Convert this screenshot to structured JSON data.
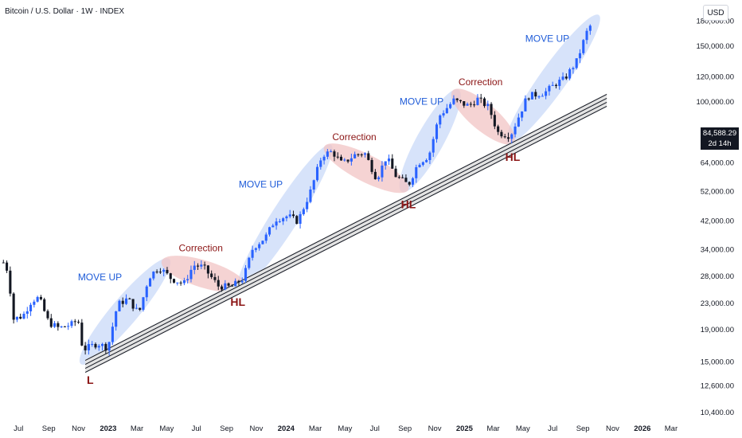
{
  "header": {
    "title": "Bitcoin / U.S. Dollar · 1W · INDEX"
  },
  "price_scale": {
    "currency": "USD"
  },
  "last_price": {
    "value": "84,588.29",
    "countdown": "2d 14h"
  },
  "colors": {
    "up": "#2962ff",
    "down": "#131722",
    "move_up_band": "#c9daf8",
    "correction_band": "#f2c4c4",
    "trendline": "#131722",
    "move_up_text": "#1e5bd8",
    "correction_text": "#8b1414"
  },
  "chart_data": {
    "type": "candlestick",
    "symbol": "Bitcoin / U.S. Dollar",
    "interval": "1W",
    "y_scale": "log",
    "y_ticks": [
      180000,
      150000,
      120000,
      100000,
      84000,
      64000,
      52000,
      42000,
      34000,
      28000,
      23000,
      19000,
      15000,
      12600,
      10400
    ],
    "y_tick_labels": [
      "180,000.00",
      "150,000.00",
      "120,000.00",
      "100,000.00",
      "",
      "64,000.00",
      "52,000.00",
      "42,000.00",
      "34,000.00",
      "28,000.00",
      "23,000.00",
      "19,000.00",
      "15,000.00",
      "12,600.00",
      "10,400.00"
    ],
    "x_ticks": [
      {
        "label": "Jul",
        "date": "2022-07",
        "year": false
      },
      {
        "label": "Sep",
        "date": "2022-09",
        "year": false
      },
      {
        "label": "Nov",
        "date": "2022-11",
        "year": false
      },
      {
        "label": "2023",
        "date": "2023-01",
        "year": true
      },
      {
        "label": "Mar",
        "date": "2023-03",
        "year": false
      },
      {
        "label": "May",
        "date": "2023-05",
        "year": false
      },
      {
        "label": "Jul",
        "date": "2023-07",
        "year": false
      },
      {
        "label": "Sep",
        "date": "2023-09",
        "year": false
      },
      {
        "label": "Nov",
        "date": "2023-11",
        "year": false
      },
      {
        "label": "2024",
        "date": "2024-01",
        "year": true
      },
      {
        "label": "Mar",
        "date": "2024-03",
        "year": false
      },
      {
        "label": "May",
        "date": "2024-05",
        "year": false
      },
      {
        "label": "Jul",
        "date": "2024-07",
        "year": false
      },
      {
        "label": "Sep",
        "date": "2024-09",
        "year": false
      },
      {
        "label": "Nov",
        "date": "2024-11",
        "year": false
      },
      {
        "label": "2025",
        "date": "2025-01",
        "year": true
      },
      {
        "label": "Mar",
        "date": "2025-03",
        "year": false
      },
      {
        "label": "May",
        "date": "2025-05",
        "year": false
      },
      {
        "label": "Jul",
        "date": "2025-07",
        "year": false
      },
      {
        "label": "Sep",
        "date": "2025-09",
        "year": false
      },
      {
        "label": "Nov",
        "date": "2025-11",
        "year": false
      },
      {
        "label": "2026",
        "date": "2026-01",
        "year": true
      },
      {
        "label": "Mar",
        "date": "2026-03",
        "year": false
      }
    ],
    "x_range": [
      "2022-05-24",
      "2026-04-24"
    ],
    "y_range": [
      9800,
      210000
    ],
    "price_path": [
      [
        "2022-05-31",
        31000
      ],
      [
        "2022-06-10",
        29000
      ],
      [
        "2022-06-20",
        20500
      ],
      [
        "2022-07-10",
        21000
      ],
      [
        "2022-07-28",
        23500
      ],
      [
        "2022-08-12",
        24000
      ],
      [
        "2022-09-01",
        20000
      ],
      [
        "2022-09-22",
        19200
      ],
      [
        "2022-10-20",
        19800
      ],
      [
        "2022-10-31",
        20500
      ],
      [
        "2022-11-10",
        16400
      ],
      [
        "2022-12-10",
        17200
      ],
      [
        "2022-12-31",
        16600
      ],
      [
        "2023-01-20",
        22800
      ],
      [
        "2023-02-10",
        23800
      ],
      [
        "2023-03-05",
        21400
      ],
      [
        "2023-03-25",
        27800
      ],
      [
        "2023-04-15",
        30000
      ],
      [
        "2023-05-10",
        27600
      ],
      [
        "2023-06-05",
        26500
      ],
      [
        "2023-06-25",
        30400
      ],
      [
        "2023-07-15",
        30000
      ],
      [
        "2023-08-15",
        26100
      ],
      [
        "2023-09-10",
        25900
      ],
      [
        "2023-10-05",
        27600
      ],
      [
        "2023-10-25",
        34500
      ],
      [
        "2023-11-20",
        37300
      ],
      [
        "2023-12-10",
        42500
      ],
      [
        "2024-01-05",
        43500
      ],
      [
        "2024-01-25",
        41800
      ],
      [
        "2024-02-20",
        52000
      ],
      [
        "2024-03-15",
        68000
      ],
      [
        "2024-04-05",
        69500
      ],
      [
        "2024-04-25",
        63500
      ],
      [
        "2024-05-20",
        67800
      ],
      [
        "2024-06-10",
        69000
      ],
      [
        "2024-07-05",
        57000
      ],
      [
        "2024-07-25",
        67000
      ],
      [
        "2024-08-12",
        58500
      ],
      [
        "2024-09-08",
        54500
      ],
      [
        "2024-09-28",
        64000
      ],
      [
        "2024-10-20",
        67500
      ],
      [
        "2024-11-10",
        90000
      ],
      [
        "2024-12-10",
        101000
      ],
      [
        "2025-01-10",
        97000
      ],
      [
        "2025-01-28",
        102000
      ],
      [
        "2025-02-20",
        96000
      ],
      [
        "2025-03-10",
        80000
      ],
      [
        "2025-04-05",
        78000
      ],
      [
        "2025-04-15",
        84588.29
      ],
      [
        "2025-05-10",
        104000
      ],
      [
        "2025-06-15",
        107000
      ],
      [
        "2025-07-10",
        115000
      ],
      [
        "2025-07-25",
        118000
      ],
      [
        "2025-08-20",
        135000
      ],
      [
        "2025-09-08",
        165000
      ],
      [
        "2025-09-20",
        178000
      ]
    ],
    "trendline": {
      "start": [
        "2022-11-15",
        15100
      ],
      "end": [
        "2025-10-20",
        105000
      ],
      "lines": 4
    },
    "move_up_bands": [
      {
        "start": [
          "2022-11-12",
          15200
        ],
        "end": [
          "2023-04-30",
          31000
        ]
      },
      {
        "start": [
          "2023-10-01",
          26200
        ],
        "end": [
          "2024-03-28",
          71000
        ]
      },
      {
        "start": [
          "2024-08-30",
          53500
        ],
        "end": [
          "2024-12-15",
          106000
        ]
      },
      {
        "start": [
          "2025-04-05",
          76000
        ],
        "end": [
          "2025-09-28",
          183000
        ]
      }
    ],
    "correction_bands": [
      {
        "start": [
          "2023-04-30",
          31000
        ],
        "end": [
          "2023-10-01",
          26200
        ]
      },
      {
        "start": [
          "2024-03-28",
          71000
        ],
        "end": [
          "2024-08-30",
          53500
        ]
      },
      {
        "start": [
          "2024-12-15",
          106000
        ],
        "end": [
          "2025-04-05",
          76000
        ]
      }
    ],
    "annotations": [
      {
        "text": "MOVE UP",
        "kind": "move",
        "at": [
          "2022-12-15",
          27200
        ]
      },
      {
        "text": "Correction",
        "kind": "correction",
        "at": [
          "2023-07-10",
          33600
        ]
      },
      {
        "text": "MOVE UP",
        "kind": "move",
        "at": [
          "2023-11-10",
          53500
        ]
      },
      {
        "text": "Correction",
        "kind": "correction",
        "at": [
          "2024-05-20",
          75500
        ]
      },
      {
        "text": "MOVE UP",
        "kind": "move",
        "at": [
          "2024-10-05",
          98000
        ]
      },
      {
        "text": "Correction",
        "kind": "correction",
        "at": [
          "2025-02-03",
          113000
        ]
      },
      {
        "text": "MOVE UP",
        "kind": "move",
        "at": [
          "2025-06-20",
          155000
        ]
      },
      {
        "text": "L",
        "kind": "low",
        "at": [
          "2022-11-25",
          12800
        ]
      },
      {
        "text": "HL",
        "kind": "low",
        "at": [
          "2023-09-24",
          22600
        ]
      },
      {
        "text": "HL",
        "kind": "low",
        "at": [
          "2024-09-08",
          46000
        ]
      },
      {
        "text": "HL",
        "kind": "low",
        "at": [
          "2025-04-10",
          65000
        ]
      }
    ]
  }
}
